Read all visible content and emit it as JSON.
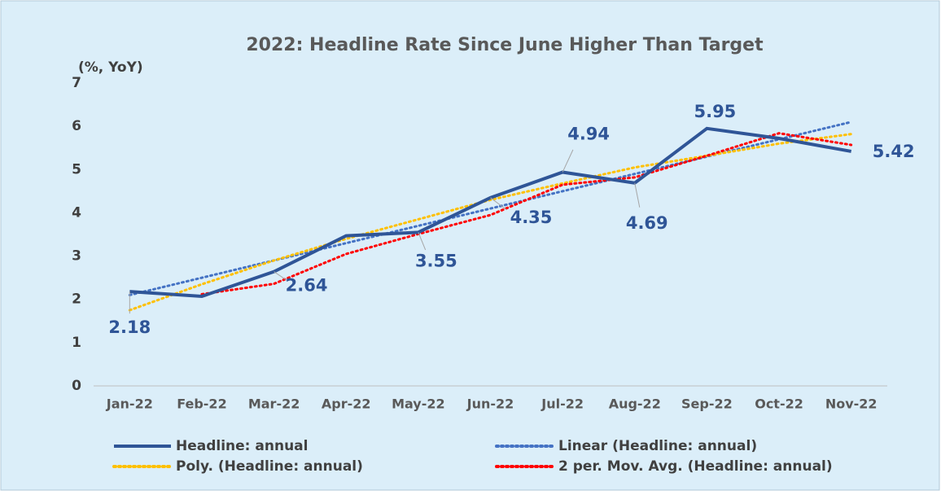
{
  "chart_data": {
    "type": "line",
    "title": "2022: Headline Rate Since June Higher Than Target",
    "y_label": "(%, YoY)",
    "categories": [
      "Jan-22",
      "Feb-22",
      "Mar-22",
      "Apr-22",
      "May-22",
      "Jun-22",
      "Jul-22",
      "Aug-22",
      "Sep-22",
      "Oct-22",
      "Nov-22"
    ],
    "series": [
      {
        "name": "Headline: annual",
        "color": "#2f5597",
        "style": "solid",
        "values": [
          2.18,
          2.07,
          2.64,
          3.47,
          3.55,
          4.35,
          4.94,
          4.69,
          5.95,
          5.72,
          5.42
        ],
        "value_labels": [
          "2.18",
          null,
          "2.64",
          null,
          "3.55",
          "4.35",
          "4.94",
          "4.69",
          "5.95",
          null,
          "5.42"
        ]
      },
      {
        "name": "Linear (Headline: annual)",
        "color": "#4472c4",
        "style": "dotted",
        "values": [
          2.1,
          2.5,
          2.9,
          3.3,
          3.7,
          4.1,
          4.5,
          4.9,
          5.3,
          5.7,
          6.1
        ]
      },
      {
        "name": "Poly. (Headline: annual)",
        "color": "#ffc000",
        "style": "dotted",
        "values": [
          1.75,
          2.35,
          2.9,
          3.4,
          3.85,
          4.3,
          4.68,
          5.05,
          5.32,
          5.6,
          5.82
        ]
      },
      {
        "name": "2 per. Mov. Avg. (Headline: annual)",
        "color": "#ff0000",
        "style": "dotted",
        "values": [
          null,
          2.12,
          2.36,
          3.05,
          3.51,
          3.95,
          4.65,
          4.82,
          5.32,
          5.84,
          5.57
        ]
      }
    ],
    "ylim": [
      0,
      7
    ],
    "yticks": [
      0,
      1,
      2,
      3,
      4,
      5,
      6,
      7
    ],
    "grid": false
  }
}
